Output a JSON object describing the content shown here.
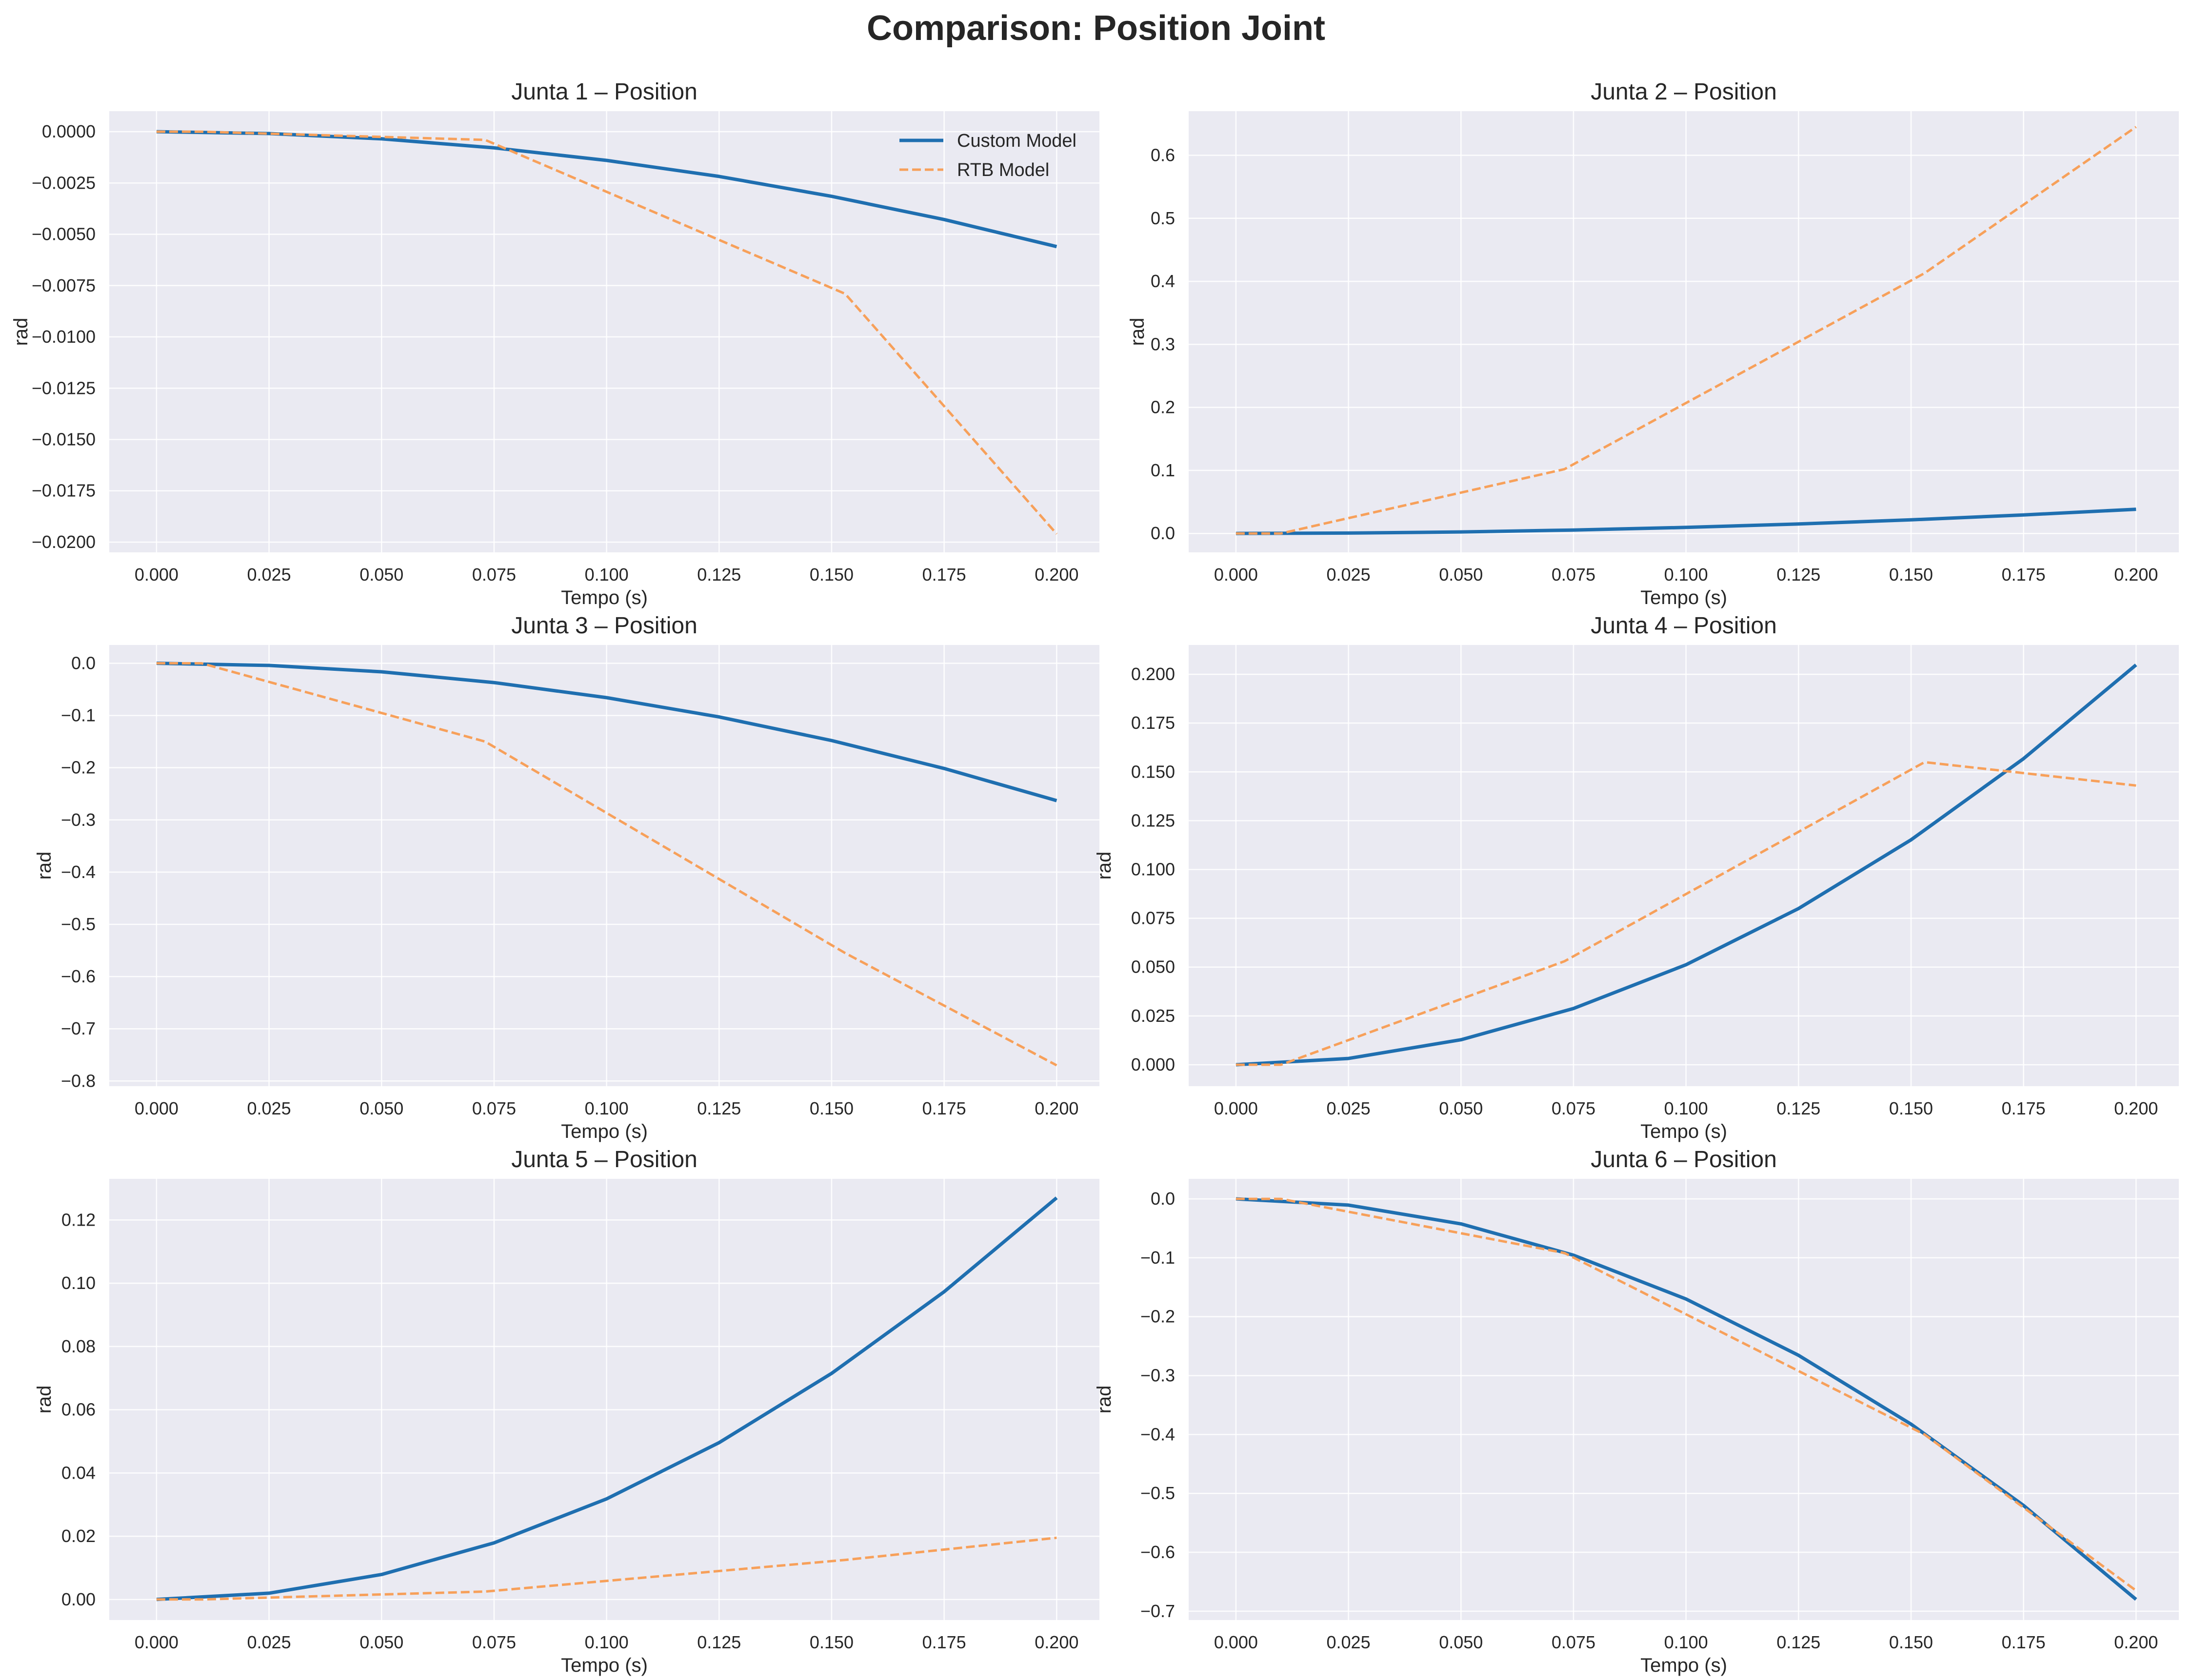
{
  "figure": {
    "title": "Comparison: Position Joint",
    "background": "#ffffff",
    "axes_background": "#eaeaf2",
    "grid_color": "#ffffff"
  },
  "chart_data": [
    {
      "type": "line",
      "title": "Junta 1 – Position",
      "xlabel": "Tempo (s)",
      "ylabel": "rad",
      "xlim": [
        -0.0105,
        0.2095
      ],
      "ylim": [
        -0.0205,
        0.001
      ],
      "xticks": [
        0.0,
        0.025,
        0.05,
        0.075,
        0.1,
        0.125,
        0.15,
        0.175,
        0.2
      ],
      "xtick_labels": [
        "0.000",
        "0.025",
        "0.050",
        "0.075",
        "0.100",
        "0.125",
        "0.150",
        "0.175",
        "0.200"
      ],
      "yticks": [
        0.0,
        -0.0025,
        -0.005,
        -0.0075,
        -0.01,
        -0.0125,
        -0.015,
        -0.0175,
        -0.02
      ],
      "ytick_labels": [
        "0.0000",
        "−0.0025",
        "−0.0050",
        "−0.0075",
        "−0.0100",
        "−0.0125",
        "−0.0150",
        "−0.0175",
        "−0.0200"
      ],
      "grid": true,
      "legend": "upper right",
      "series": [
        {
          "name": "Custom Model",
          "color": "#1f6fb0",
          "style": "solid",
          "x": [
            0,
            0.025,
            0.05,
            0.075,
            0.1,
            0.125,
            0.15,
            0.175,
            0.2
          ],
          "y": [
            0,
            -9e-05,
            -0.00035,
            -0.00079,
            -0.0014,
            -0.00218,
            -0.00315,
            -0.00428,
            -0.0056
          ]
        },
        {
          "name": "RTB Model",
          "color": "#f7a05a",
          "style": "dashed",
          "x": [
            0,
            0.01,
            0.073,
            0.153,
            0.2
          ],
          "y": [
            0,
            0,
            -0.0004,
            -0.0079,
            -0.0196
          ]
        }
      ]
    },
    {
      "type": "line",
      "title": "Junta 2 – Position",
      "xlabel": "Tempo (s)",
      "ylabel": "rad",
      "xlim": [
        -0.0105,
        0.2095
      ],
      "ylim": [
        -0.03,
        0.67
      ],
      "xticks": [
        0.0,
        0.025,
        0.05,
        0.075,
        0.1,
        0.125,
        0.15,
        0.175,
        0.2
      ],
      "xtick_labels": [
        "0.000",
        "0.025",
        "0.050",
        "0.075",
        "0.100",
        "0.125",
        "0.150",
        "0.175",
        "0.200"
      ],
      "yticks": [
        0.0,
        0.1,
        0.2,
        0.3,
        0.4,
        0.5,
        0.6
      ],
      "ytick_labels": [
        "0.0",
        "0.1",
        "0.2",
        "0.3",
        "0.4",
        "0.5",
        "0.6"
      ],
      "grid": true,
      "series": [
        {
          "name": "Custom Model",
          "color": "#1f6fb0",
          "style": "solid",
          "x": [
            0,
            0.025,
            0.05,
            0.075,
            0.1,
            0.125,
            0.15,
            0.175,
            0.2
          ],
          "y": [
            0,
            0.0006,
            0.0024,
            0.0054,
            0.0096,
            0.015,
            0.0216,
            0.0294,
            0.0384
          ]
        },
        {
          "name": "RTB Model",
          "color": "#f7a05a",
          "style": "dashed",
          "x": [
            0,
            0.01,
            0.073,
            0.153,
            0.2
          ],
          "y": [
            0,
            0,
            0.102,
            0.413,
            0.645
          ]
        }
      ]
    },
    {
      "type": "line",
      "title": "Junta 3 – Position",
      "xlabel": "Tempo (s)",
      "ylabel": "rad",
      "xlim": [
        -0.0105,
        0.2095
      ],
      "ylim": [
        -0.81,
        0.035
      ],
      "xticks": [
        0.0,
        0.025,
        0.05,
        0.075,
        0.1,
        0.125,
        0.15,
        0.175,
        0.2
      ],
      "xtick_labels": [
        "0.000",
        "0.025",
        "0.050",
        "0.075",
        "0.100",
        "0.125",
        "0.150",
        "0.175",
        "0.200"
      ],
      "yticks": [
        0.0,
        -0.1,
        -0.2,
        -0.3,
        -0.4,
        -0.5,
        -0.6,
        -0.7,
        -0.8
      ],
      "ytick_labels": [
        "0.0",
        "−0.1",
        "−0.2",
        "−0.3",
        "−0.4",
        "−0.5",
        "−0.6",
        "−0.7",
        "−0.8"
      ],
      "grid": true,
      "series": [
        {
          "name": "Custom Model",
          "color": "#1f6fb0",
          "style": "solid",
          "x": [
            0,
            0.025,
            0.05,
            0.075,
            0.1,
            0.125,
            0.15,
            0.175,
            0.2
          ],
          "y": [
            0,
            -0.0041,
            -0.0164,
            -0.037,
            -0.0658,
            -0.1028,
            -0.148,
            -0.2015,
            -0.263
          ]
        },
        {
          "name": "RTB Model",
          "color": "#f7a05a",
          "style": "dashed",
          "x": [
            0,
            0.01,
            0.073,
            0.153,
            0.2
          ],
          "y": [
            0,
            0,
            -0.15,
            -0.555,
            -0.77
          ]
        }
      ]
    },
    {
      "type": "line",
      "title": "Junta 4 – Position",
      "xlabel": "Tempo (s)",
      "ylabel": "rad",
      "xlim": [
        -0.0105,
        0.2095
      ],
      "ylim": [
        -0.011,
        0.215
      ],
      "xticks": [
        0.0,
        0.025,
        0.05,
        0.075,
        0.1,
        0.125,
        0.15,
        0.175,
        0.2
      ],
      "xtick_labels": [
        "0.000",
        "0.025",
        "0.050",
        "0.075",
        "0.100",
        "0.125",
        "0.150",
        "0.175",
        "0.200"
      ],
      "yticks": [
        0.0,
        0.025,
        0.05,
        0.075,
        0.1,
        0.125,
        0.15,
        0.175,
        0.2
      ],
      "ytick_labels": [
        "0.000",
        "0.025",
        "0.050",
        "0.075",
        "0.100",
        "0.125",
        "0.150",
        "0.175",
        "0.200"
      ],
      "grid": true,
      "series": [
        {
          "name": "Custom Model",
          "color": "#1f6fb0",
          "style": "solid",
          "x": [
            0,
            0.025,
            0.05,
            0.075,
            0.1,
            0.125,
            0.15,
            0.175,
            0.2
          ],
          "y": [
            0,
            0.0032,
            0.0128,
            0.0288,
            0.0512,
            0.08,
            0.1152,
            0.1568,
            0.2048
          ]
        },
        {
          "name": "RTB Model",
          "color": "#f7a05a",
          "style": "dashed",
          "x": [
            0,
            0.01,
            0.073,
            0.153,
            0.2
          ],
          "y": [
            0,
            0,
            0.053,
            0.155,
            0.143
          ]
        }
      ]
    },
    {
      "type": "line",
      "title": "Junta 5 – Position",
      "xlabel": "Tempo (s)",
      "ylabel": "rad",
      "xlim": [
        -0.0105,
        0.2095
      ],
      "ylim": [
        -0.0065,
        0.133
      ],
      "xticks": [
        0.0,
        0.025,
        0.05,
        0.075,
        0.1,
        0.125,
        0.15,
        0.175,
        0.2
      ],
      "xtick_labels": [
        "0.000",
        "0.025",
        "0.050",
        "0.075",
        "0.100",
        "0.125",
        "0.150",
        "0.175",
        "0.200"
      ],
      "yticks": [
        0.0,
        0.02,
        0.04,
        0.06,
        0.08,
        0.1,
        0.12
      ],
      "ytick_labels": [
        "0.00",
        "0.02",
        "0.04",
        "0.06",
        "0.08",
        "0.10",
        "0.12"
      ],
      "grid": true,
      "series": [
        {
          "name": "Custom Model",
          "color": "#1f6fb0",
          "style": "solid",
          "x": [
            0,
            0.025,
            0.05,
            0.075,
            0.1,
            0.125,
            0.15,
            0.175,
            0.2
          ],
          "y": [
            0,
            0.002,
            0.0079,
            0.0179,
            0.0318,
            0.0496,
            0.0715,
            0.0973,
            0.127
          ]
        },
        {
          "name": "RTB Model",
          "color": "#f7a05a",
          "style": "dashed",
          "x": [
            0,
            0.01,
            0.073,
            0.153,
            0.2
          ],
          "y": [
            0,
            0,
            0.0025,
            0.0125,
            0.0195
          ]
        }
      ]
    },
    {
      "type": "line",
      "title": "Junta 6 – Position",
      "xlabel": "Tempo (s)",
      "ylabel": "rad",
      "xlim": [
        -0.0105,
        0.2095
      ],
      "ylim": [
        -0.715,
        0.034
      ],
      "xticks": [
        0.0,
        0.025,
        0.05,
        0.075,
        0.1,
        0.125,
        0.15,
        0.175,
        0.2
      ],
      "xtick_labels": [
        "0.000",
        "0.025",
        "0.050",
        "0.075",
        "0.100",
        "0.125",
        "0.150",
        "0.175",
        "0.200"
      ],
      "yticks": [
        0.0,
        -0.1,
        -0.2,
        -0.3,
        -0.4,
        -0.5,
        -0.6,
        -0.7
      ],
      "ytick_labels": [
        "0.0",
        "−0.1",
        "−0.2",
        "−0.3",
        "−0.4",
        "−0.5",
        "−0.6",
        "−0.7"
      ],
      "grid": true,
      "series": [
        {
          "name": "Custom Model",
          "color": "#1f6fb0",
          "style": "solid",
          "x": [
            0,
            0.025,
            0.05,
            0.075,
            0.1,
            0.125,
            0.15,
            0.175,
            0.2
          ],
          "y": [
            0,
            -0.0106,
            -0.0425,
            -0.0956,
            -0.17,
            -0.2656,
            -0.3825,
            -0.5206,
            -0.68
          ]
        },
        {
          "name": "RTB Model",
          "color": "#f7a05a",
          "style": "dashed",
          "x": [
            0,
            0.01,
            0.073,
            0.153,
            0.2
          ],
          "y": [
            0,
            0,
            -0.092,
            -0.4,
            -0.665
          ]
        }
      ]
    }
  ]
}
